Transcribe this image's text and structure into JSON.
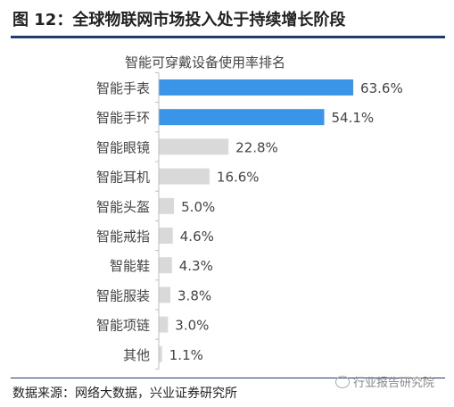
{
  "figure": {
    "title": "图 12：全球物联网市场投入处于持续增长阶段",
    "source": "数据来源：网络大数据，兴业证券研究所",
    "watermark": "行业报告研究院"
  },
  "colors": {
    "highlight": "#3a95e8",
    "normal": "#d9d9d9",
    "rule": "#1f3c6e"
  },
  "chart_data": {
    "type": "bar",
    "orientation": "horizontal",
    "title": "智能可穿戴设备使用率排名",
    "categories": [
      "智能手表",
      "智能手环",
      "智能眼镜",
      "智能耳机",
      "智能头盔",
      "智能戒指",
      "智能鞋",
      "智能服装",
      "智能项链",
      "其他"
    ],
    "values": [
      63.6,
      54.1,
      22.8,
      16.6,
      5.0,
      4.6,
      4.3,
      3.8,
      3.0,
      1.1
    ],
    "labels": [
      "63.6%",
      "54.1%",
      "22.8%",
      "16.6%",
      "5.0%",
      "4.6%",
      "4.3%",
      "3.8%",
      "3.0%",
      "1.1%"
    ],
    "highlighted": [
      true,
      true,
      false,
      false,
      false,
      false,
      false,
      false,
      false,
      false
    ],
    "xlim": [
      0,
      70
    ],
    "xlabel": "",
    "ylabel": "",
    "grid": false,
    "legend": "none"
  }
}
